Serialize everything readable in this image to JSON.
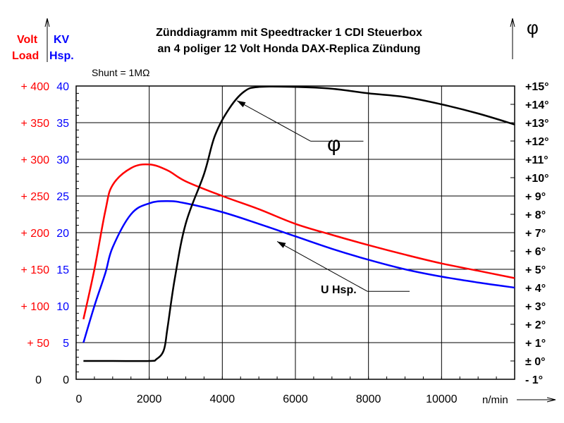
{
  "chart_data": {
    "type": "line",
    "title_lines": [
      "Zünddiagramm mit Speedtracker 1 CDI Steuerbox",
      "an 4 poliger 12 Volt Honda DAX-Replica  Zündung"
    ],
    "note": "Shunt = 1MΩ",
    "left_axis_headers": {
      "load_top": "Volt",
      "load_bottom": "Load",
      "hsp_top": "KV",
      "hsp_bottom": "Hsp."
    },
    "right_axis_header": "φ",
    "xlabel": "n/min",
    "x_ticks": [
      "0",
      "2000",
      "4000",
      "6000",
      "8000",
      "10000"
    ],
    "xlim": [
      0,
      12000
    ],
    "y_load_ticks": [
      "0",
      "+  50",
      "+ 100",
      "+ 150",
      "+ 200",
      "+ 250",
      "+ 300",
      "+ 350",
      "+ 400"
    ],
    "y_hsp_ticks": [
      "0",
      "5",
      "10",
      "15",
      "20",
      "25",
      "30",
      "35",
      "40"
    ],
    "y_phi_ticks": [
      "-  1°",
      "± 0°",
      "+ 1°",
      "+ 2°",
      "+ 3°",
      "+ 4°",
      "+ 5°",
      "+ 6°",
      "+ 7°",
      "+ 8°",
      "+ 9°",
      "+10°",
      "+11°",
      "+12°",
      "+13°",
      "+14°",
      "+15°"
    ],
    "ylim_load": [
      0,
      400
    ],
    "ylim_hsp": [
      0,
      40
    ],
    "ylim_phi": [
      -1,
      15
    ],
    "colors": {
      "load": "#ff0000",
      "hsp": "#0000ff",
      "phi": "#000000",
      "grid": "#000000"
    },
    "series": [
      {
        "key": "load",
        "axis": "load",
        "x": [
          200,
          500,
          800,
          1000,
          1500,
          2000,
          2500,
          3000,
          4000,
          5000,
          6000,
          7000,
          8000,
          9000,
          10000,
          11000,
          12000
        ],
        "y": [
          82,
          150,
          230,
          265,
          288,
          293,
          285,
          270,
          250,
          232,
          212,
          197,
          183,
          170,
          158,
          148,
          138
        ]
      },
      {
        "key": "hsp",
        "axis": "hsp",
        "x": [
          200,
          500,
          800,
          1000,
          1500,
          2000,
          2500,
          3000,
          4000,
          5000,
          6000,
          7000,
          8000,
          9000,
          10000,
          11000,
          12000
        ],
        "y": [
          5,
          10,
          14.5,
          18,
          22.5,
          24,
          24.3,
          24,
          22.8,
          21.2,
          19.5,
          17.8,
          16.3,
          15,
          14,
          13.2,
          12.5
        ]
      },
      {
        "key": "phi",
        "axis": "phi",
        "x": [
          200,
          1000,
          2000,
          2200,
          2400,
          2500,
          2700,
          3000,
          3500,
          3800,
          4200,
          4600,
          5000,
          6000,
          7000,
          8000,
          9000,
          10000,
          11000,
          12000
        ],
        "y": [
          0,
          0,
          0,
          0.1,
          0.6,
          1.8,
          4.5,
          7.5,
          10.2,
          12.3,
          13.8,
          14.7,
          14.95,
          14.95,
          14.85,
          14.6,
          14.4,
          14.0,
          13.5,
          12.9
        ]
      }
    ],
    "annotations": [
      {
        "label": "φ",
        "series": "phi",
        "x": 6800,
        "y": 12.3
      },
      {
        "label": "U Hsp.",
        "series": "hsp",
        "x": 8200,
        "y": 12.0
      }
    ]
  }
}
